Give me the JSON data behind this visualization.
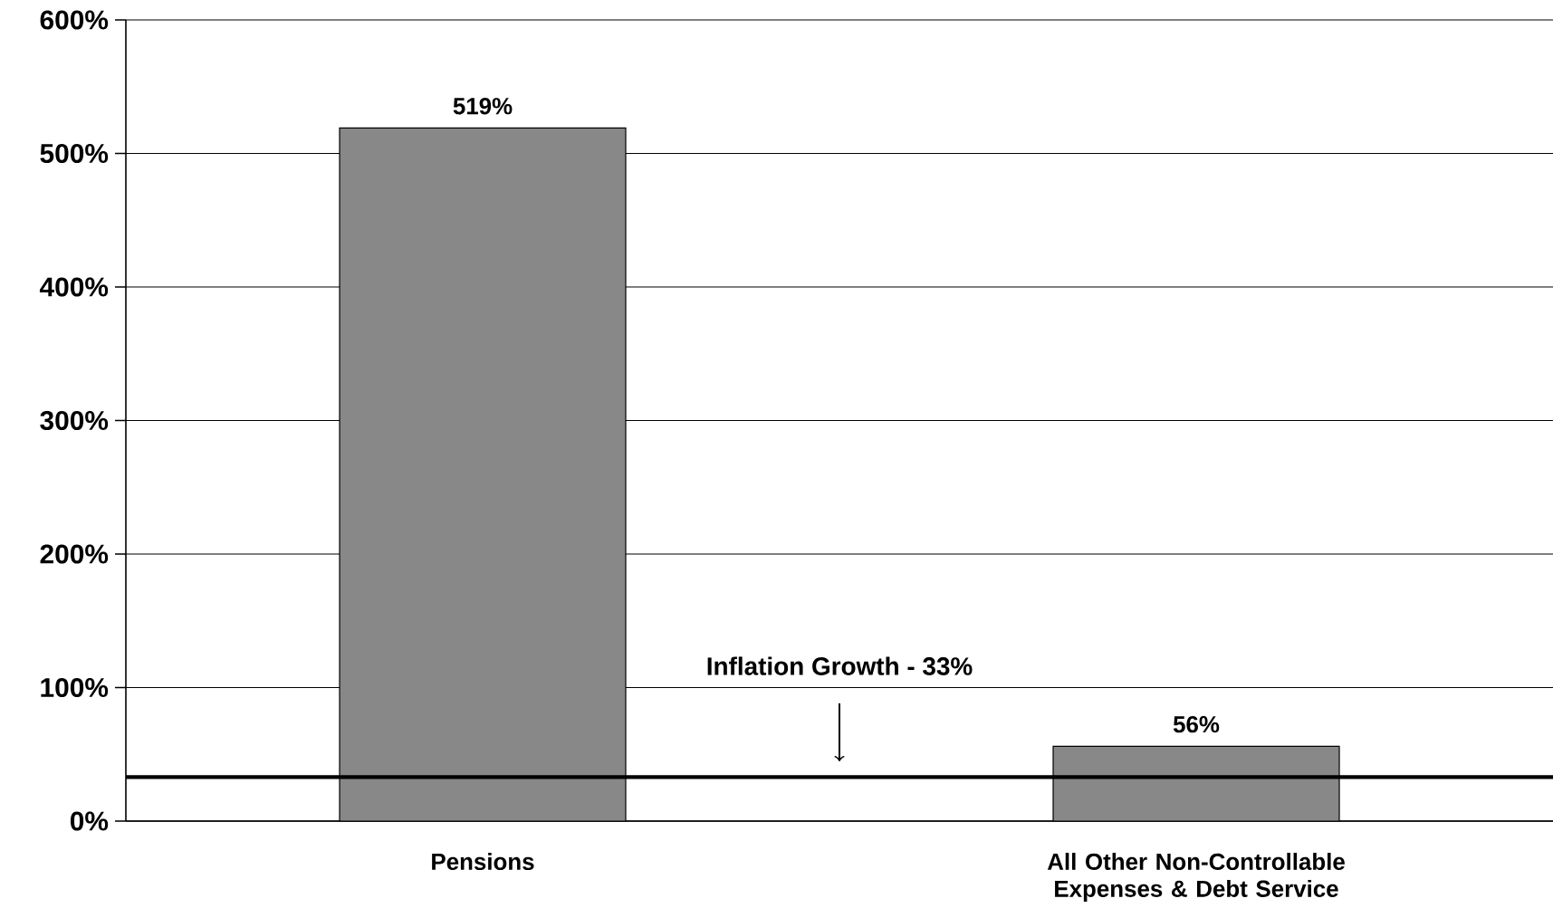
{
  "chart_data": {
    "type": "bar",
    "categories": [
      "Pensions",
      "All Other Non-Controllable Expenses & Debt Service"
    ],
    "values": [
      519,
      56
    ],
    "color": "#888888",
    "value_labels": [
      "519%",
      "56%"
    ],
    "ylim": [
      0,
      600
    ],
    "yticks": [
      {
        "value": 0,
        "label": "0%"
      },
      {
        "value": 100,
        "label": "100%"
      },
      {
        "value": 200,
        "label": "200%"
      },
      {
        "value": 300,
        "label": "300%"
      },
      {
        "value": 400,
        "label": "400%"
      },
      {
        "value": 500,
        "label": "500%"
      },
      {
        "value": 600,
        "label": "600%"
      }
    ],
    "grid": "y",
    "ref_lines": [
      {
        "axis": "y",
        "value": 33,
        "label": "Inflation Growth - 33%",
        "color": "#000000"
      }
    ]
  }
}
